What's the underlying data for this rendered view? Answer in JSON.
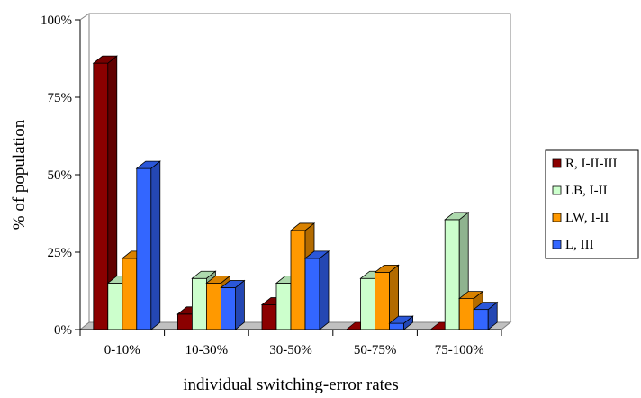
{
  "chart_data": {
    "type": "bar",
    "style": "3d-clustered-column",
    "title": "",
    "xlabel": "individual switching-error rates",
    "ylabel": "% of population",
    "ylim": [
      0,
      100
    ],
    "yticks": [
      "0%",
      "25%",
      "50%",
      "75%",
      "100%"
    ],
    "categories": [
      "0-10%",
      "10-30%",
      "30-50%",
      "50-75%",
      "75-100%"
    ],
    "series": [
      {
        "name": "R, I-II-III",
        "color": "#8b0000",
        "values": [
          86,
          5,
          8,
          0,
          0
        ]
      },
      {
        "name": "LB, I-II",
        "color": "#ccffcc",
        "values": [
          15,
          16.5,
          15,
          16.5,
          35.5
        ]
      },
      {
        "name": "LW, I-II",
        "color": "#ff9900",
        "values": [
          23,
          15,
          32,
          18.5,
          10
        ]
      },
      {
        "name": "L, III",
        "color": "#3366ff",
        "values": [
          52,
          13.5,
          23,
          2,
          6.5
        ]
      }
    ],
    "grid": false,
    "legend_position": "right"
  }
}
